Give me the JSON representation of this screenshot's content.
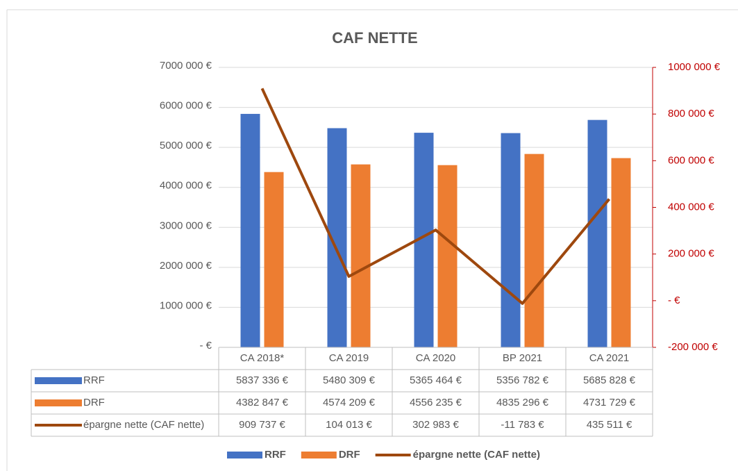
{
  "chart_data": {
    "type": "combo",
    "title": "CAF NETTE",
    "categories": [
      "CA 2018*",
      "CA 2019",
      "CA 2020",
      "BP 2021",
      "CA 2021"
    ],
    "series": [
      {
        "name": "RRF",
        "type": "bar",
        "color": "#4472c4",
        "values": [
          5837336,
          5480309,
          5365464,
          5356782,
          5685828
        ],
        "value_labels": [
          "5837 336 €",
          "5480 309 €",
          "5365 464 €",
          "5356 782 €",
          "5685 828 €"
        ]
      },
      {
        "name": "DRF",
        "type": "bar",
        "color": "#ed7d31",
        "values": [
          4382847,
          4574209,
          4556235,
          4835296,
          4731729
        ],
        "value_labels": [
          "4382 847 €",
          "4574 209 €",
          "4556 235 €",
          "4835 296 €",
          "4731 729 €"
        ]
      },
      {
        "name": "épargne nette (CAF nette)",
        "type": "line",
        "axis": "y2",
        "color": "#9e480e",
        "values": [
          909737,
          104013,
          302983,
          -11783,
          435511
        ],
        "value_labels": [
          "909 737 €",
          "104 013 €",
          "302 983 €",
          "-11 783 €",
          "435 511 €"
        ]
      }
    ],
    "ylim": [
      0,
      7000000
    ],
    "yticks": [
      {
        "value": 0,
        "label": "-   €"
      },
      {
        "value": 1000000,
        "label": "1000 000 €"
      },
      {
        "value": 2000000,
        "label": "2000 000 €"
      },
      {
        "value": 3000000,
        "label": "3000 000 €"
      },
      {
        "value": 4000000,
        "label": "4000 000 €"
      },
      {
        "value": 5000000,
        "label": "5000 000 €"
      },
      {
        "value": 6000000,
        "label": "6000 000 €"
      },
      {
        "value": 7000000,
        "label": "7000 000 €"
      }
    ],
    "y2lim": [
      -200000,
      1000000
    ],
    "y2ticks": [
      {
        "value": -200000,
        "label": "-200 000 €"
      },
      {
        "value": 0,
        "label": "-   €"
      },
      {
        "value": 200000,
        "label": "200 000 €"
      },
      {
        "value": 400000,
        "label": "400 000 €"
      },
      {
        "value": 600000,
        "label": "600 000 €"
      },
      {
        "value": 800000,
        "label": "800 000 €"
      },
      {
        "value": 1000000,
        "label": "1000 000 €"
      }
    ],
    "y2_color": "#c00000",
    "grid": true,
    "legend": "bottom"
  }
}
